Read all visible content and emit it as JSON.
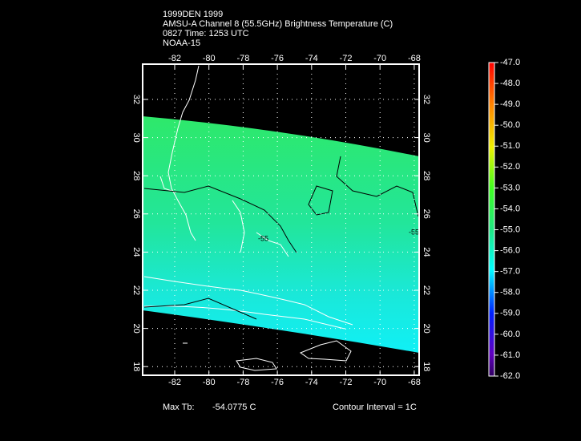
{
  "header": {
    "lines": [
      "1999DEN 1999",
      "AMSU-A Channel 8 (55.5GHz) Brightness Temperature (C)",
      "0827 Time: 1253 UTC",
      "NOAA-15"
    ]
  },
  "map": {
    "lon_labels": [
      "-82",
      "-80",
      "-78",
      "-76",
      "-74",
      "-72",
      "-70",
      "-68"
    ],
    "lat_labels": [
      "32",
      "30",
      "28",
      "26",
      "24",
      "22",
      "20",
      "18"
    ],
    "contour_labels": [
      "-55",
      "-55"
    ]
  },
  "colorbar": {
    "labels": [
      "-47.0",
      "-48.0",
      "-49.0",
      "-50.0",
      "-51.0",
      "-52.0",
      "-53.0",
      "-54.0",
      "-55.0",
      "-56.0",
      "-57.0",
      "-58.0",
      "-59.0",
      "-60.0",
      "-61.0",
      "-62.0"
    ]
  },
  "footer": {
    "max_label": "Max Tb:",
    "max_value": "-54.0775  C",
    "contour_interval": "Contour Interval = 1C"
  }
}
